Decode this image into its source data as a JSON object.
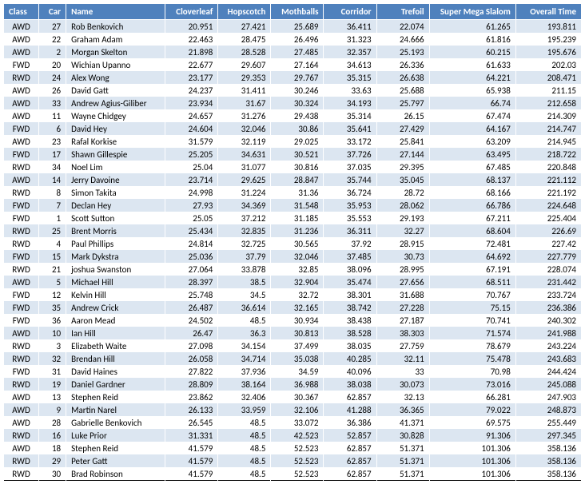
{
  "table": {
    "columns": [
      "Class",
      "Car",
      "Name",
      "Cloverleaf",
      "Hopscotch",
      "Mothballs",
      "Corridor",
      "Trefoil",
      "Super Mega Slalom",
      "Overall Time"
    ],
    "rows": [
      [
        "AWD",
        "27",
        "Rob Benkovich",
        "20.951",
        "27.421",
        "25.689",
        "36.411",
        "22.074",
        "61.265",
        "193.811"
      ],
      [
        "AWD",
        "22",
        "Graham Adam",
        "22.463",
        "28.475",
        "26.496",
        "31.323",
        "24.666",
        "61.816",
        "195.239"
      ],
      [
        "AWD",
        "2",
        "Morgan Skelton",
        "21.898",
        "28.528",
        "27.485",
        "32.357",
        "25.193",
        "60.215",
        "195.676"
      ],
      [
        "FWD",
        "20",
        "Wichian Upanno",
        "22.677",
        "29.607",
        "27.164",
        "34.613",
        "26.336",
        "61.633",
        "202.03"
      ],
      [
        "RWD",
        "24",
        "Alex Wong",
        "23.177",
        "29.353",
        "29.767",
        "35.315",
        "26.638",
        "64.221",
        "208.471"
      ],
      [
        "AWD",
        "26",
        "David Gatt",
        "24.237",
        "31.411",
        "30.246",
        "33.63",
        "25.688",
        "65.938",
        "211.15"
      ],
      [
        "AWD",
        "33",
        "Andrew Agius-Giliber",
        "23.934",
        "31.67",
        "30.324",
        "34.193",
        "25.797",
        "66.74",
        "212.658"
      ],
      [
        "AWD",
        "11",
        "Wayne Chidgey",
        "24.657",
        "31.276",
        "29.438",
        "35.314",
        "26.15",
        "67.474",
        "214.309"
      ],
      [
        "FWD",
        "6",
        "David Hey",
        "24.604",
        "32.046",
        "30.86",
        "35.641",
        "27.429",
        "64.167",
        "214.747"
      ],
      [
        "AWD",
        "23",
        "Rafal Korkise",
        "31.579",
        "32.119",
        "29.025",
        "33.172",
        "25.841",
        "63.209",
        "214.945"
      ],
      [
        "FWD",
        "17",
        "Shawn Gillespie",
        "25.205",
        "34.631",
        "30.521",
        "37.726",
        "27.144",
        "63.495",
        "218.722"
      ],
      [
        "RWD",
        "34",
        "Noel Lim",
        "25.04",
        "31.077",
        "30.816",
        "37.035",
        "29.395",
        "67.485",
        "220.848"
      ],
      [
        "AWD",
        "14",
        "Jerry Davoine",
        "23.714",
        "29.625",
        "28.847",
        "35.744",
        "35.045",
        "68.137",
        "221.112"
      ],
      [
        "RWD",
        "8",
        "Simon Takita",
        "24.998",
        "31.224",
        "31.36",
        "36.724",
        "28.72",
        "68.166",
        "221.192"
      ],
      [
        "FWD",
        "7",
        "Declan Hey",
        "27.93",
        "34.369",
        "31.548",
        "35.953",
        "28.062",
        "66.786",
        "224.648"
      ],
      [
        "FWD",
        "1",
        "Scott Sutton",
        "25.05",
        "37.212",
        "31.185",
        "35.553",
        "29.193",
        "67.211",
        "225.404"
      ],
      [
        "RWD",
        "25",
        "Brent Morris",
        "25.434",
        "32.835",
        "31.236",
        "36.311",
        "32.27",
        "68.604",
        "226.69"
      ],
      [
        "RWD",
        "4",
        "Paul Phillips",
        "24.814",
        "32.725",
        "30.565",
        "37.92",
        "28.915",
        "72.481",
        "227.42"
      ],
      [
        "FWD",
        "15",
        "Mark Dykstra",
        "25.036",
        "37.79",
        "32.046",
        "37.485",
        "30.73",
        "64.692",
        "227.779"
      ],
      [
        "RWD",
        "21",
        "joshua Swanston",
        "27.064",
        "33.878",
        "32.85",
        "38.096",
        "28.995",
        "67.191",
        "228.074"
      ],
      [
        "AWD",
        "5",
        "Michael Hill",
        "28.397",
        "38.5",
        "32.904",
        "35.474",
        "27.656",
        "68.511",
        "231.442"
      ],
      [
        "FWD",
        "12",
        "Kelvin Hill",
        "25.748",
        "34.5",
        "32.72",
        "38.301",
        "31.688",
        "70.767",
        "233.724"
      ],
      [
        "FWD",
        "35",
        "Andrew Crick",
        "26.487",
        "36.614",
        "32.165",
        "38.742",
        "27.228",
        "75.15",
        "236.386"
      ],
      [
        "FWD",
        "36",
        "Aaron Mead",
        "24.502",
        "48.5",
        "30.934",
        "38.438",
        "27.187",
        "70.741",
        "240.302"
      ],
      [
        "AWD",
        "10",
        "Ian Hill",
        "26.47",
        "36.3",
        "30.813",
        "38.528",
        "38.303",
        "71.574",
        "241.988"
      ],
      [
        "RWD",
        "3",
        "Elizabeth Waite",
        "27.098",
        "34.154",
        "37.499",
        "38.035",
        "27.759",
        "78.679",
        "243.224"
      ],
      [
        "RWD",
        "32",
        "Brendan Hill",
        "26.058",
        "34.714",
        "35.038",
        "40.285",
        "32.11",
        "75.478",
        "243.683"
      ],
      [
        "FWD",
        "31",
        "David Haines",
        "27.822",
        "37.936",
        "34.59",
        "40.096",
        "33",
        "70.98",
        "244.424"
      ],
      [
        "RWD",
        "19",
        "Daniel Gardner",
        "28.809",
        "38.164",
        "36.988",
        "38.038",
        "30.073",
        "73.016",
        "245.088"
      ],
      [
        "AWD",
        "13",
        "Stephen Reid",
        "23.862",
        "32.406",
        "30.367",
        "62.857",
        "32.13",
        "66.281",
        "247.903"
      ],
      [
        "AWD",
        "9",
        "Martin Narel",
        "26.133",
        "33.959",
        "32.106",
        "41.288",
        "36.365",
        "79.022",
        "248.873"
      ],
      [
        "AWD",
        "28",
        "Gabrielle Benkovich",
        "26.545",
        "48.5",
        "33.072",
        "36.386",
        "41.371",
        "69.575",
        "255.449"
      ],
      [
        "RWD",
        "16",
        "Luke Prior",
        "31.331",
        "48.5",
        "42.523",
        "52.857",
        "30.828",
        "91.306",
        "297.345"
      ],
      [
        "AWD",
        "18",
        "Stephen Reid",
        "41.579",
        "48.5",
        "52.523",
        "62.857",
        "51.371",
        "101.306",
        "358.136"
      ],
      [
        "RWD",
        "29",
        "Peter Gatt",
        "41.579",
        "48.5",
        "52.523",
        "62.857",
        "51.371",
        "101.306",
        "358.136"
      ],
      [
        "RWD",
        "30",
        "Brad Robinson",
        "41.579",
        "48.5",
        "52.523",
        "62.857",
        "51.371",
        "101.306",
        "358.136"
      ]
    ]
  }
}
